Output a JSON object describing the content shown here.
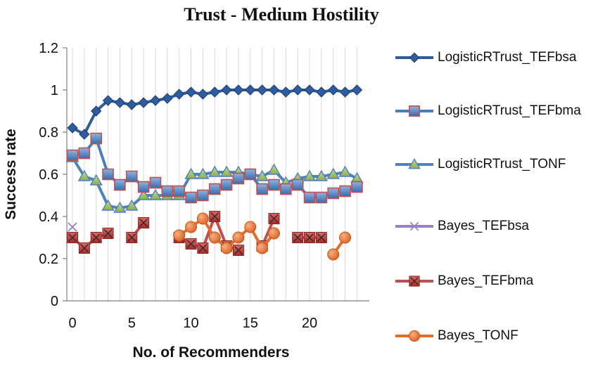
{
  "chart_data": {
    "type": "line",
    "title": "Trust - Medium Hostility",
    "xlabel": "No. of Recommenders",
    "ylabel": "Success rate",
    "xlim": [
      0,
      24
    ],
    "ylim": [
      0,
      1.2
    ],
    "xticks": [
      "0",
      "5",
      "10",
      "15",
      "20"
    ],
    "yticks": [
      "0",
      "0.2",
      "0.4",
      "0.6",
      "0.8",
      "1",
      "1.2"
    ],
    "grid": "vertical",
    "legend_position": "right",
    "series": [
      {
        "name": "LogisticRTrust_TEFbsa",
        "color": "#2E5C9E",
        "marker": "diamond",
        "x": [
          0,
          1,
          2,
          3,
          4,
          5,
          6,
          7,
          8,
          9,
          10,
          11,
          12,
          13,
          14,
          15,
          16,
          17,
          18,
          19,
          20,
          21,
          22,
          23,
          24
        ],
        "y": [
          0.82,
          0.79,
          0.9,
          0.95,
          0.94,
          0.93,
          0.94,
          0.95,
          0.96,
          0.98,
          0.99,
          0.98,
          0.99,
          1.0,
          1.0,
          1.0,
          1.0,
          1.0,
          0.99,
          1.0,
          1.0,
          0.99,
          1.0,
          0.99,
          1.0
        ]
      },
      {
        "name": "LogisticRTrust_TEFbma",
        "color": "#4A7EBB",
        "marker": "square",
        "x": [
          0,
          1,
          2,
          3,
          4,
          5,
          6,
          7,
          8,
          9,
          10,
          11,
          12,
          13,
          14,
          15,
          16,
          17,
          18,
          19,
          20,
          21,
          22,
          23,
          24
        ],
        "y": [
          0.69,
          0.7,
          0.77,
          0.6,
          0.55,
          0.59,
          0.54,
          0.56,
          0.52,
          0.52,
          0.49,
          0.5,
          0.53,
          0.55,
          0.58,
          0.6,
          0.53,
          0.55,
          0.53,
          0.55,
          0.49,
          0.49,
          0.51,
          0.52,
          0.54
        ]
      },
      {
        "name": "LogisticRTrust_TONF",
        "color": "#4F81BD",
        "marker": "triangle",
        "x": [
          0,
          1,
          2,
          3,
          4,
          5,
          6,
          7,
          8,
          9,
          10,
          11,
          12,
          13,
          14,
          15,
          16,
          17,
          18,
          19,
          20,
          21,
          22,
          23,
          24
        ],
        "y": [
          0.68,
          0.59,
          0.57,
          0.45,
          0.44,
          0.45,
          0.5,
          0.5,
          0.5,
          0.5,
          0.6,
          0.6,
          0.61,
          0.61,
          0.61,
          0.6,
          0.59,
          0.62,
          0.56,
          0.58,
          0.59,
          0.59,
          0.6,
          0.61,
          0.58
        ]
      },
      {
        "name": "Bayes_TEFbsa",
        "color": "#9B7FC2",
        "marker": "x",
        "x": [
          0
        ],
        "y": [
          0.35
        ]
      },
      {
        "name": "Bayes_TEFbma",
        "color": "#C0504D",
        "marker": "xsquare",
        "segments": [
          {
            "x": [
              0,
              1,
              2,
              3
            ],
            "y": [
              0.3,
              0.25,
              0.3,
              0.32
            ]
          },
          {
            "x": [
              5,
              6
            ],
            "y": [
              0.3,
              0.37
            ]
          },
          {
            "x": [
              9,
              10,
              11,
              12,
              13,
              14
            ],
            "y": [
              0.3,
              0.27,
              0.25,
              0.4,
              0.26,
              0.24
            ]
          },
          {
            "x": [
              16,
              17
            ],
            "y": [
              0.26,
              0.39
            ]
          },
          {
            "x": [
              19,
              20,
              21
            ],
            "y": [
              0.3,
              0.3,
              0.3
            ]
          }
        ]
      },
      {
        "name": "Bayes_TONF",
        "color": "#E46C2C",
        "marker": "circle",
        "segments": [
          {
            "x": [
              9,
              10,
              11,
              12,
              13,
              14,
              15,
              16,
              17
            ],
            "y": [
              0.31,
              0.35,
              0.39,
              0.3,
              0.25,
              0.3,
              0.35,
              0.25,
              0.32
            ]
          },
          {
            "x": [
              22,
              23
            ],
            "y": [
              0.22,
              0.3
            ]
          }
        ]
      }
    ]
  }
}
